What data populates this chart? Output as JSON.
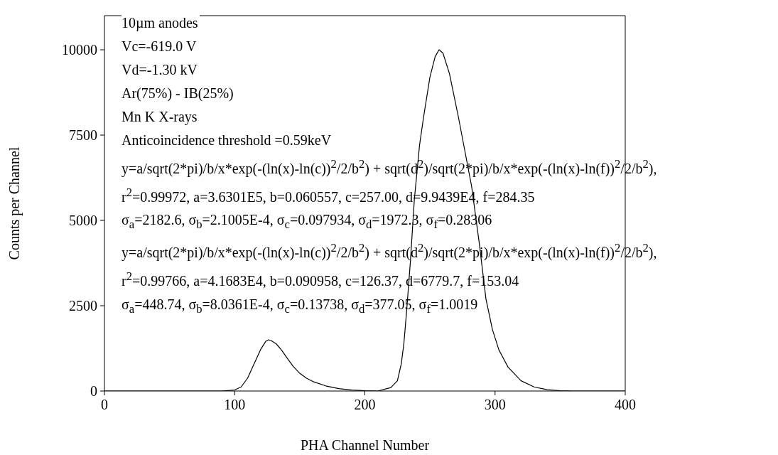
{
  "chart_data": {
    "type": "line",
    "xlabel": "PHA Channel Number",
    "ylabel": "Counts per Channel",
    "xlim": [
      0,
      400
    ],
    "xticks": [
      0,
      100,
      200,
      300,
      400
    ],
    "ylim": [
      0,
      11000
    ],
    "yticks": [
      0,
      2500,
      5000,
      7500,
      10000
    ],
    "grid": false,
    "legend": false,
    "marker": "none",
    "line_style": "solid",
    "series": [
      {
        "color": "#000000",
        "x": [
          0,
          50,
          90,
          100,
          105,
          110,
          115,
          120,
          124,
          126,
          128,
          132,
          136,
          140,
          145,
          150,
          155,
          160,
          170,
          180,
          190,
          200,
          210,
          220,
          225,
          228,
          230,
          232,
          235,
          238,
          242,
          245,
          250,
          254,
          257,
          260,
          265,
          272,
          277,
          282,
          288,
          293,
          298,
          303,
          310,
          320,
          330,
          340,
          350,
          360,
          400
        ],
        "values": [
          0,
          0,
          0,
          30,
          120,
          380,
          800,
          1220,
          1460,
          1500,
          1480,
          1380,
          1200,
          980,
          720,
          520,
          380,
          280,
          150,
          70,
          30,
          10,
          0,
          100,
          300,
          800,
          1400,
          2300,
          3800,
          5600,
          7200,
          8000,
          9200,
          9800,
          10000,
          9900,
          9300,
          8000,
          7000,
          6000,
          4300,
          2700,
          1800,
          1200,
          700,
          300,
          120,
          40,
          10,
          0,
          0
        ]
      }
    ],
    "annotations": [
      "10µm anodes",
      "Vc=-619.0 V",
      "Vd=-1.30 kV",
      "Ar(75%) - IB(25%)",
      "Mn K X-rays",
      "Anticoincidence threshold =0.59keV",
      "y=a/sqrt(2*pi)/b/x*exp(-(ln(x)-ln(c))$^{2}$/2/b$^{2}$) + sqrt(d$^{2}$)/sqrt(2*pi)/b/x*exp(-(ln(x)-ln(f))$^{2}$/2/b$^{2}$),",
      "r$^{2}$=0.99972, a=3.6301E5, b=0.060557, c=257.00, d=9.9439E4, f=284.35",
      "σ$_{a}$=2182.6, σ$_{b}$=2.1005E-4, σ$_{c}$=0.097934, σ$_{d}$=1972.3, σ$_{f}$=0.28306",
      "y=a/sqrt(2*pi)/b/x*exp(-(ln(x)-ln(c))$^{2}$/2/b$^{2}$) + sqrt(d$^{2}$)/sqrt(2*pi)/b/x*exp(-(ln(x)-ln(f))$^{2}$/2/b$^{2}$),",
      "r$^{2}$=0.99766, a=4.1683E4, b=0.090958, c=126.37, d=6779.7, f=153.04",
      "σ$_{a}$=448.74, σ$_{b}$=8.0361E-4, σ$_{c}$=0.13738, σ$_{d}$=377.05, σ$_{f}$=1.0019"
    ]
  }
}
